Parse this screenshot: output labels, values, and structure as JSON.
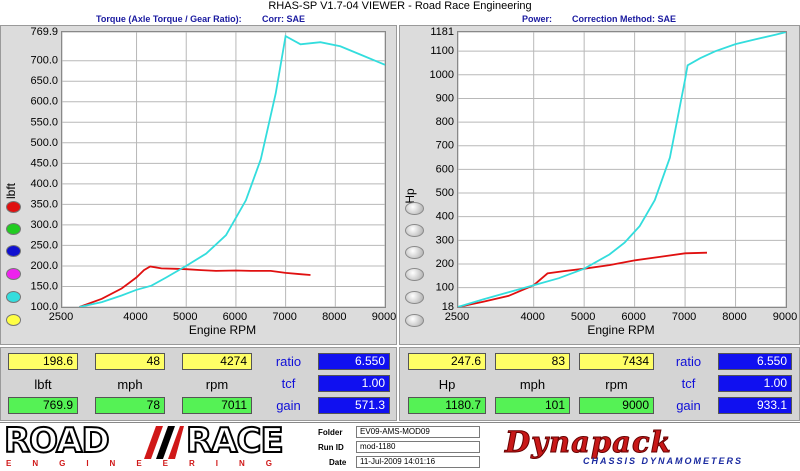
{
  "window": {
    "title": "RHAS-SP V1.7-04  VIEWER - Road Race Engineering"
  },
  "left": {
    "header_label": "Torque (Axle Torque / Gear Ratio):",
    "header_corr": "Corr: SAE",
    "readout": {
      "row1": [
        "198.6",
        "48",
        "4274"
      ],
      "labels": [
        "lbft",
        "mph",
        "rpm"
      ],
      "row2": [
        "769.9",
        "78",
        "7011"
      ],
      "ratio_label": "ratio",
      "ratio": "6.550",
      "tcf_label": "tcf",
      "tcf": "1.00",
      "gain_label": "gain",
      "gain": "571.3"
    }
  },
  "right": {
    "header_label": "Power:",
    "header_corr": "Correction Method: SAE",
    "readout": {
      "row1": [
        "247.6",
        "83",
        "7434"
      ],
      "labels": [
        "Hp",
        "mph",
        "rpm"
      ],
      "row2": [
        "1180.7",
        "101",
        "9000"
      ],
      "ratio_label": "ratio",
      "ratio": "6.550",
      "tcf_label": "tcf",
      "tcf": "1.00",
      "gain_label": "gain",
      "gain": "933.1"
    }
  },
  "legend_colors": [
    "#e01010",
    "#22cc22",
    "#1010d0",
    "#ee22ee",
    "#33dddd",
    "#ffff44"
  ],
  "footer": {
    "logo_left_top": "ROAD",
    "logo_left_top2": "RACE",
    "logo_left_bottom": "ENGINEERING",
    "folder_label": "Folder",
    "folder": "EV09-AMS-MOD09",
    "run_label": "Run ID",
    "run": "mod-1180",
    "date_label": "Date",
    "date": "11-Jul-2009  14:01:16",
    "logo_right": "Dynapack",
    "logo_right_sub": "CHASSIS DYNAMOMETERS"
  },
  "chart_data": [
    {
      "type": "line",
      "xlabel": "Engine RPM",
      "ylabel": "lbft",
      "xlim": [
        2500,
        9000
      ],
      "ylim": [
        100,
        769.9
      ],
      "x_ticks": [
        "2500",
        "4000",
        "5000",
        "6000",
        "7000",
        "8000",
        "9000"
      ],
      "x_tick_values": [
        2500,
        4000,
        5000,
        6000,
        7000,
        8000,
        9000
      ],
      "y_ticks": [
        "769.9",
        "700.0",
        "650.0",
        "600.0",
        "550.0",
        "500.0",
        "450.0",
        "400.0",
        "350.0",
        "300.0",
        "250.0",
        "200.0",
        "150.0",
        "100.0"
      ],
      "y_tick_values": [
        769.9,
        700,
        650,
        600,
        550,
        500,
        450,
        400,
        350,
        300,
        250,
        200,
        150,
        100
      ],
      "grid": true,
      "series": [
        {
          "color": "#e01010",
          "x": [
            2850,
            3300,
            3700,
            4000,
            4150,
            4274,
            4500,
            4800,
            5000,
            5300,
            5600,
            6000,
            6300,
            6700,
            7000,
            7300,
            7500
          ],
          "y": [
            100,
            120,
            145,
            172,
            190,
            198.6,
            194,
            193,
            192,
            190,
            188,
            189,
            188,
            188,
            183,
            180,
            178
          ]
        },
        {
          "color": "#33dddd",
          "x": [
            2850,
            3300,
            3700,
            4000,
            4300,
            4600,
            5000,
            5400,
            5800,
            6200,
            6500,
            6800,
            7000,
            7300,
            7700,
            8100,
            8500,
            9000
          ],
          "y": [
            100,
            112,
            128,
            142,
            152,
            172,
            200,
            230,
            275,
            360,
            460,
            620,
            760,
            740,
            745,
            735,
            715,
            690
          ]
        }
      ]
    },
    {
      "type": "line",
      "xlabel": "Engine RPM",
      "ylabel": "Hp",
      "xlim": [
        2500,
        9000
      ],
      "ylim": [
        18,
        1181
      ],
      "x_ticks": [
        "2500",
        "4000",
        "5000",
        "6000",
        "7000",
        "8000",
        "9000"
      ],
      "x_tick_values": [
        2500,
        4000,
        5000,
        6000,
        7000,
        8000,
        9000
      ],
      "y_ticks": [
        "1181",
        "1100",
        "1000",
        "900",
        "800",
        "700",
        "600",
        "500",
        "400",
        "300",
        "200",
        "100",
        "18"
      ],
      "y_tick_values": [
        1181,
        1100,
        1000,
        900,
        800,
        700,
        600,
        500,
        400,
        300,
        200,
        100,
        18
      ],
      "grid": true,
      "series": [
        {
          "color": "#e01010",
          "x": [
            2500,
            3000,
            3500,
            4000,
            4274,
            4600,
            5000,
            5500,
            6000,
            6500,
            7000,
            7434
          ],
          "y": [
            18,
            40,
            65,
            110,
            160,
            170,
            180,
            195,
            215,
            230,
            245,
            247.6
          ]
        },
        {
          "color": "#33dddd",
          "x": [
            2500,
            3000,
            3500,
            4000,
            4500,
            5000,
            5500,
            5800,
            6100,
            6400,
            6700,
            7000,
            7050,
            7300,
            7600,
            8000,
            8400,
            8800,
            9000
          ],
          "y": [
            18,
            50,
            80,
            110,
            140,
            180,
            240,
            290,
            360,
            470,
            650,
            980,
            1040,
            1070,
            1100,
            1130,
            1150,
            1170,
            1180.7
          ]
        }
      ]
    }
  ]
}
